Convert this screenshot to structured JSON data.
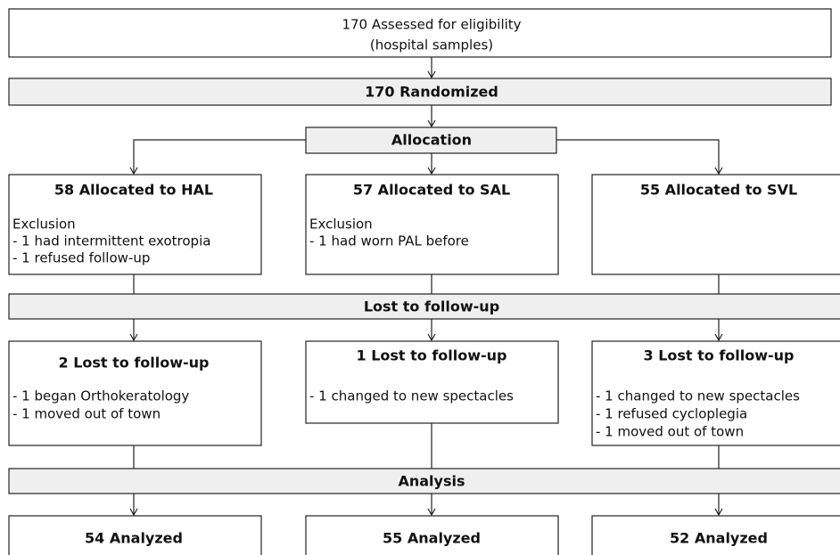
{
  "screening": [
    "170 Assessed for eligibility",
    "(hospital samples)"
  ],
  "randomized": "170 Randomized",
  "allocation": "Allocation",
  "lost_stage": "Lost to follow-up",
  "analysis_stage": "Analysis",
  "arms": [
    {
      "allocated": "58 Allocated to HAL",
      "exclusion_heading": "Exclusion",
      "exclusions": [
        "-  1 had intermittent exotropia",
        "-  1 refused follow-up"
      ],
      "lost": "2 Lost to follow-up",
      "lost_reasons": [
        "-  1 began Orthokeratology",
        "-  1 moved out of town"
      ],
      "analyzed": "54 Analyzed"
    },
    {
      "allocated": "57 Allocated to SAL",
      "exclusion_heading": "Exclusion",
      "exclusions": [
        "-  1 had worn PAL before"
      ],
      "lost": "1 Lost to follow-up",
      "lost_reasons": [
        "-  1 changed to new spectacles"
      ],
      "analyzed": "55 Analyzed"
    },
    {
      "allocated": "55 Allocated to SVL",
      "exclusions": [],
      "lost": "3 Lost to follow-up",
      "lost_reasons": [
        "-  1 changed to new spectacles",
        "-  1 refused cycloplegia",
        "-  1 moved out of town"
      ],
      "analyzed": "52 Analyzed"
    }
  ]
}
